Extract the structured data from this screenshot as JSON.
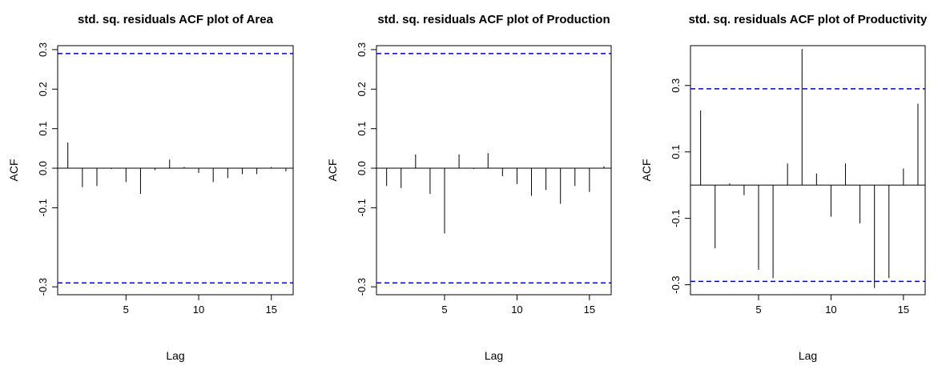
{
  "chart_data": [
    {
      "type": "bar",
      "title": "std. sq. residuals ACF plot of Area",
      "xlabel": "Lag",
      "ylabel": "ACF",
      "xlim": [
        0.3,
        16.5
      ],
      "ylim": [
        -0.32,
        0.31
      ],
      "x_ticks": [
        5,
        10,
        15
      ],
      "y_ticks": [
        -0.3,
        -0.1,
        0.0,
        0.1,
        0.2,
        0.3
      ],
      "y_tick_labels": [
        "-0.3",
        "-0.1",
        "0.0",
        "0.1",
        "0.2",
        "0.3"
      ],
      "zero_line": 0,
      "conf_bounds": [
        0.29,
        -0.29
      ],
      "lags": [
        1,
        2,
        3,
        4,
        5,
        6,
        7,
        8,
        9,
        10,
        11,
        12,
        13,
        14,
        15,
        16
      ],
      "values": [
        0.065,
        -0.048,
        -0.045,
        -0.002,
        -0.035,
        -0.065,
        -0.005,
        0.022,
        0.003,
        -0.012,
        -0.035,
        -0.025,
        -0.015,
        -0.015,
        0.003,
        -0.008
      ],
      "colors": {
        "bars": "#000000",
        "bounds": "#0000cc",
        "zero": "#000000"
      }
    },
    {
      "type": "bar",
      "title": "std. sq. residuals ACF plot of Production",
      "xlabel": "Lag",
      "ylabel": "ACF",
      "xlim": [
        0.3,
        16.5
      ],
      "ylim": [
        -0.32,
        0.31
      ],
      "x_ticks": [
        5,
        10,
        15
      ],
      "y_ticks": [
        -0.3,
        -0.1,
        0.0,
        0.1,
        0.2,
        0.3
      ],
      "y_tick_labels": [
        "-0.3",
        "-0.1",
        "0.0",
        "0.1",
        "0.2",
        "0.3"
      ],
      "zero_line": 0,
      "conf_bounds": [
        0.29,
        -0.29
      ],
      "lags": [
        1,
        2,
        3,
        4,
        5,
        6,
        7,
        8,
        9,
        10,
        11,
        12,
        13,
        14,
        15,
        16
      ],
      "values": [
        -0.045,
        -0.05,
        0.035,
        -0.065,
        -0.165,
        0.035,
        -0.002,
        0.038,
        -0.02,
        -0.04,
        -0.07,
        -0.055,
        -0.09,
        -0.045,
        -0.06,
        0.005
      ],
      "colors": {
        "bars": "#000000",
        "bounds": "#0000cc",
        "zero": "#000000"
      }
    },
    {
      "type": "bar",
      "title": "std. sq. residuals ACF plot of Productivity",
      "xlabel": "Lag",
      "ylabel": "ACF",
      "xlim": [
        0.3,
        16.5
      ],
      "ylim": [
        -0.33,
        0.42
      ],
      "x_ticks": [
        5,
        10,
        15
      ],
      "y_ticks": [
        -0.3,
        -0.1,
        0.1,
        0.3
      ],
      "y_tick_labels": [
        "-0.3",
        "-0.1",
        "0.1",
        "0.3"
      ],
      "zero_line": 0,
      "conf_bounds": [
        0.29,
        -0.29
      ],
      "lags": [
        1,
        2,
        3,
        4,
        5,
        6,
        7,
        8,
        9,
        10,
        11,
        12,
        13,
        14,
        15,
        16
      ],
      "values": [
        0.225,
        -0.19,
        0.005,
        -0.03,
        -0.255,
        -0.28,
        0.065,
        0.41,
        0.035,
        -0.095,
        0.065,
        -0.115,
        -0.31,
        -0.28,
        0.05,
        0.245
      ],
      "colors": {
        "bars": "#000000",
        "bounds": "#0000cc",
        "zero": "#000000"
      }
    }
  ]
}
